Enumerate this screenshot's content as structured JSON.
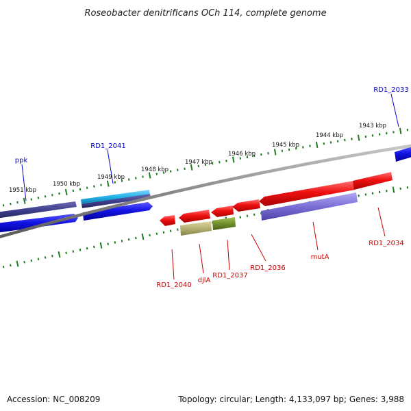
{
  "title": "Roseobacter denitrificans OCh 114, complete genome",
  "accession_text": "Accession: NC_008209",
  "summary_text": "Topology: circular; Length: 4,133,097 bp; Genes: 3,988",
  "colors": {
    "backbone": "#8a8a8a",
    "tick": "#1f7a1f",
    "forward_cds": "#1414e6",
    "forward_dark": "#3f3f8f",
    "forward_cyan": "#22b2e6",
    "reverse_cds": "#ee1111",
    "reverse_lavender": "#7b6fd6",
    "reverse_khaki": "#b5b071",
    "reverse_olive": "#6f8f2a",
    "label_top": "#0000cc",
    "label_bottom": "#cc0000"
  },
  "ticks": {
    "upper": [
      {
        "label": "1951 kbp"
      },
      {
        "label": "1950 kbp"
      },
      {
        "label": "1949 kbp"
      },
      {
        "label": "1948 kbp"
      },
      {
        "label": "1947 kbp"
      },
      {
        "label": "1946 kbp"
      },
      {
        "label": "1945 kbp"
      },
      {
        "label": "1944 kbp"
      },
      {
        "label": "1943 kbp"
      }
    ]
  },
  "genes_top": [
    {
      "label": "ppk"
    },
    {
      "label": "RD1_2041"
    },
    {
      "label": "RD1_2033"
    }
  ],
  "genes_bottom": [
    {
      "label": "RD1_2040"
    },
    {
      "label": "djlA"
    },
    {
      "label": "RD1_2037"
    },
    {
      "label": "RD1_2036"
    },
    {
      "label": "mutA"
    },
    {
      "label": "RD1_2034"
    }
  ]
}
